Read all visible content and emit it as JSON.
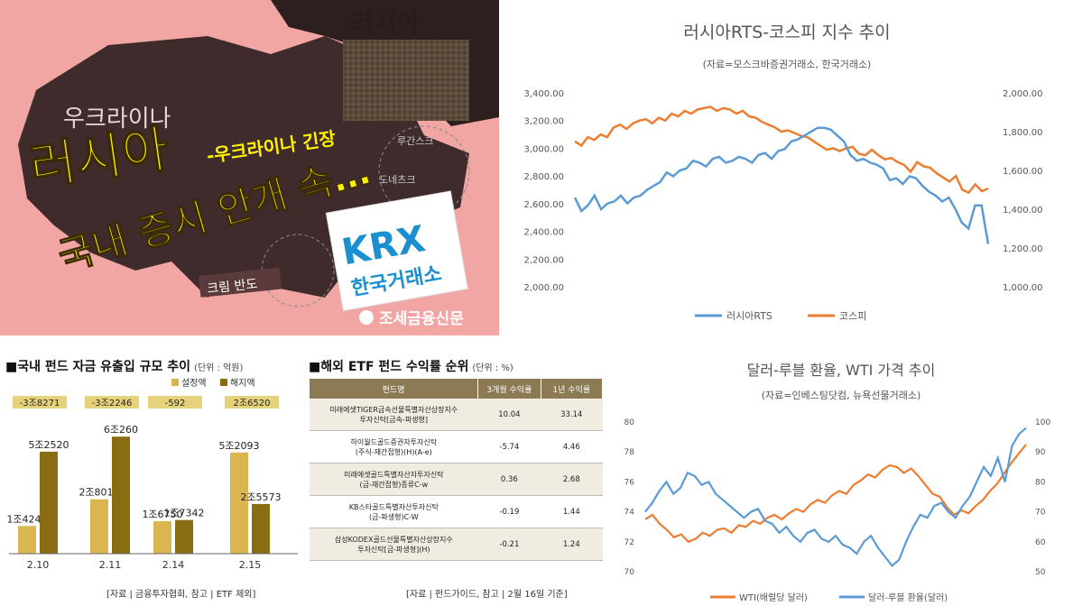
{
  "map_card": {
    "label_russia": "러시아",
    "label_ukraine": "우크라이나",
    "headline_main": "러시아",
    "headline_dash": "-우크라이나 긴장",
    "headline_line2": "국내 증시 안개 속…",
    "label_luhansk": "루간스크",
    "label_donetsk": "도네츠크",
    "label_crimea": "크림 반도",
    "krx_logo": "KRX",
    "krx_name": "한국거래소",
    "publisher": "조세금융신문"
  },
  "rts_chart": {
    "title": "러시아RTS-코스피 지수 추이",
    "subtitle": "(자료=모스크바증권거래소, 한국거래소)",
    "left_ticks": [
      "3,400.00",
      "3,200.00",
      "3,000.00",
      "2,800.00",
      "2,600.00",
      "2,400.00",
      "2,200.00",
      "2,000.00"
    ],
    "right_ticks": [
      "2,000.00",
      "1,800.00",
      "1,600.00",
      "1,400.00",
      "1,200.00",
      "1,000.00"
    ],
    "legend_rts": "러시아RTS",
    "legend_kospi": "코스피",
    "color_rts": "#5b9bd5",
    "color_kospi": "#ed7d31"
  },
  "fund_chart": {
    "title": "국내 펀드 자금 유출입 규모 추이",
    "unit": "(단위 : 억원)",
    "legend_set": "설정액",
    "legend_redeem": "해지액",
    "net_labels": [
      "-3조8271",
      "-3조2246",
      "-592",
      "2조6520"
    ],
    "source": "[자료 | 금융투자협회, 참고 | ETF 제외]",
    "color_set": "#d9b64f",
    "color_redeem": "#8a6d12"
  },
  "etf_table": {
    "title": "해외 ETF 펀드 수익률 순위",
    "unit": "(단위 : %)",
    "headers": [
      "펀드명",
      "3개월 수익률",
      "1년 수익률"
    ],
    "rows": [
      {
        "name1": "미래에셋TIGER금속선물특별자산상장지수",
        "name2": "투자신탁[금속-파생형]",
        "r3m": "10.04",
        "r1y": "33.14"
      },
      {
        "name1": "하이월드골드증권자투자신탁",
        "name2": "(주식-재간접형)(H)(A-e)",
        "r3m": "-5.74",
        "r1y": "4.46"
      },
      {
        "name1": "미래에셋골드특별자산자투자신탁",
        "name2": "(금-재간접형)종류C-w",
        "r3m": "0.36",
        "r1y": "2.68"
      },
      {
        "name1": "KB스타골드특별자산투자신탁",
        "name2": "(금-파생형)C-W",
        "r3m": "-0.19",
        "r1y": "1.44"
      },
      {
        "name1": "삼성KODEX골드선물특별자산상장지수",
        "name2": "투자신탁[금-파생형](H)",
        "r3m": "-0.21",
        "r1y": "1.24"
      }
    ],
    "source": "[자료 | 펀드가이드, 참고 | 2월 16일 기준]"
  },
  "wti_chart": {
    "title": "달러-루블 환율, WTI 가격 추이",
    "subtitle": "(자료=인베스팅닷컴, 뉴욕선물거래소)",
    "left_ticks": [
      "80",
      "78",
      "76",
      "74",
      "72",
      "70"
    ],
    "right_ticks": [
      "100",
      "90",
      "80",
      "70",
      "60",
      "50"
    ],
    "legend_wti": "WTI(배럴당 달러)",
    "legend_rub": "달러-루블 환율(달러)",
    "color_wti": "#ed7d31",
    "color_rub": "#5b9bd5"
  },
  "chart_data": [
    {
      "type": "line",
      "title": "러시아RTS-코스피 지수 추이",
      "y_left_range": [
        2000,
        3400
      ],
      "y_right_range": [
        1000,
        2000
      ],
      "series": [
        {
          "name": "러시아RTS",
          "axis": "right",
          "values": [
            1460,
            1390,
            1420,
            1470,
            1400,
            1430,
            1440,
            1470,
            1430,
            1460,
            1470,
            1500,
            1520,
            1540,
            1590,
            1570,
            1600,
            1610,
            1650,
            1640,
            1620,
            1660,
            1670,
            1640,
            1650,
            1670,
            1660,
            1640,
            1680,
            1690,
            1660,
            1700,
            1710,
            1750,
            1760,
            1780,
            1800,
            1820,
            1820,
            1810,
            1780,
            1750,
            1680,
            1650,
            1660,
            1640,
            1630,
            1610,
            1550,
            1560,
            1530,
            1570,
            1560,
            1520,
            1490,
            1470,
            1440,
            1460,
            1400,
            1330,
            1300,
            1420,
            1420,
            1220
          ]
        },
        {
          "name": "코스피",
          "axis": "left",
          "values": [
            3050,
            3020,
            3080,
            3060,
            3100,
            3080,
            3150,
            3170,
            3140,
            3180,
            3200,
            3210,
            3180,
            3220,
            3200,
            3250,
            3230,
            3270,
            3250,
            3280,
            3290,
            3300,
            3270,
            3290,
            3280,
            3250,
            3270,
            3230,
            3220,
            3190,
            3170,
            3150,
            3120,
            3130,
            3110,
            3090,
            3080,
            3050,
            3020,
            2990,
            3000,
            2980,
            3000,
            3010,
            2960,
            2950,
            2990,
            2950,
            2920,
            2930,
            2900,
            2880,
            2830,
            2900,
            2870,
            2860,
            2820,
            2790,
            2760,
            2800,
            2700,
            2680,
            2740,
            2690,
            2710
          ]
        }
      ]
    },
    {
      "type": "bar",
      "title": "국내 펀드 자금 유출입 규모 추이",
      "categories": [
        "2.10",
        "2.11",
        "2.14",
        "2.15"
      ],
      "series": [
        {
          "name": "설정액",
          "values": [
            14249,
            28014,
            16750,
            52093
          ],
          "labels": [
            "1조4249",
            "2조8014",
            "1조6750",
            "5조2093"
          ]
        },
        {
          "name": "해지액",
          "values": [
            52520,
            60260,
            17342,
            25573
          ],
          "labels": [
            "5조2520",
            "6조260",
            "1조7342",
            "2조5573"
          ]
        }
      ]
    },
    {
      "type": "line",
      "title": "달러-루블 환율, WTI 가격 추이",
      "y_left_range": [
        70,
        80
      ],
      "y_right_range": [
        50,
        100
      ],
      "series": [
        {
          "name": "WTI(배럴당 달러)",
          "axis": "left",
          "values": [
            73.5,
            73.8,
            73.2,
            72.8,
            72.3,
            72.5,
            72.0,
            72.2,
            72.6,
            72.4,
            72.8,
            72.9,
            72.6,
            73.1,
            73.0,
            73.4,
            73.2,
            73.6,
            73.8,
            73.5,
            73.9,
            74.2,
            74.0,
            74.5,
            74.8,
            74.6,
            75.1,
            75.4,
            75.2,
            75.8,
            76.1,
            76.5,
            76.3,
            76.8,
            77.1,
            77.0,
            76.6,
            76.9,
            76.4,
            75.8,
            75.2,
            75.0,
            74.3,
            73.8,
            74.1,
            73.9,
            74.4,
            74.8,
            75.4,
            75.9,
            76.6,
            77.3,
            77.9,
            78.5
          ]
        },
        {
          "name": "달러-루블 환율(달러)",
          "axis": "right",
          "values": [
            70.0,
            73.0,
            77.0,
            80.0,
            76.0,
            78.0,
            83.0,
            82.0,
            79.0,
            80.0,
            76.0,
            74.0,
            72.0,
            70.0,
            68.0,
            70.0,
            71.0,
            67.0,
            66.0,
            63.0,
            65.0,
            62.0,
            60.0,
            63.0,
            64.0,
            61.0,
            60.0,
            62.0,
            59.0,
            58.0,
            56.0,
            60.0,
            62.0,
            58.0,
            55.0,
            52.0,
            54.0,
            60.0,
            65.0,
            69.0,
            68.0,
            72.0,
            73.0,
            70.0,
            68.0,
            72.0,
            75.0,
            80.0,
            85.0,
            82.0,
            88.0,
            80.0,
            92.0,
            96.0,
            98.0
          ]
        }
      ]
    }
  ]
}
